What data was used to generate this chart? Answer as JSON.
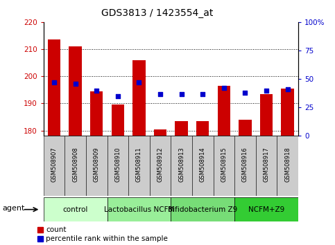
{
  "title": "GDS3813 / 1423554_at",
  "samples": [
    "GSM508907",
    "GSM508908",
    "GSM508909",
    "GSM508910",
    "GSM508911",
    "GSM508912",
    "GSM508913",
    "GSM508914",
    "GSM508915",
    "GSM508916",
    "GSM508917",
    "GSM508918"
  ],
  "counts": [
    213.5,
    211.0,
    194.5,
    189.5,
    206.0,
    180.5,
    183.5,
    183.5,
    196.5,
    184.0,
    193.5,
    195.5
  ],
  "percentiles": [
    47,
    46,
    40,
    35,
    47,
    37,
    37,
    37,
    42,
    38,
    40,
    41
  ],
  "ylim_left": [
    178,
    220
  ],
  "ylim_right": [
    0,
    100
  ],
  "yticks_left": [
    180,
    190,
    200,
    210,
    220
  ],
  "yticks_right": [
    0,
    25,
    50,
    75,
    100
  ],
  "bar_color": "#cc0000",
  "dot_color": "#0000cc",
  "groups": [
    {
      "label": "control",
      "start": 0,
      "end": 3,
      "color": "#ccffcc"
    },
    {
      "label": "Lactobacillus NCFM",
      "start": 3,
      "end": 6,
      "color": "#99ee99"
    },
    {
      "label": "Bifidobacterium Z9",
      "start": 6,
      "end": 9,
      "color": "#77dd77"
    },
    {
      "label": "NCFM+Z9",
      "start": 9,
      "end": 12,
      "color": "#33cc33"
    }
  ],
  "agent_label": "agent",
  "legend_count_label": "count",
  "legend_percentile_label": "percentile rank within the sample",
  "title_fontsize": 10,
  "tick_fontsize": 7.5,
  "sample_fontsize": 6.0,
  "group_fontsize": 7.5,
  "legend_fontsize": 7.5,
  "agent_fontsize": 8
}
